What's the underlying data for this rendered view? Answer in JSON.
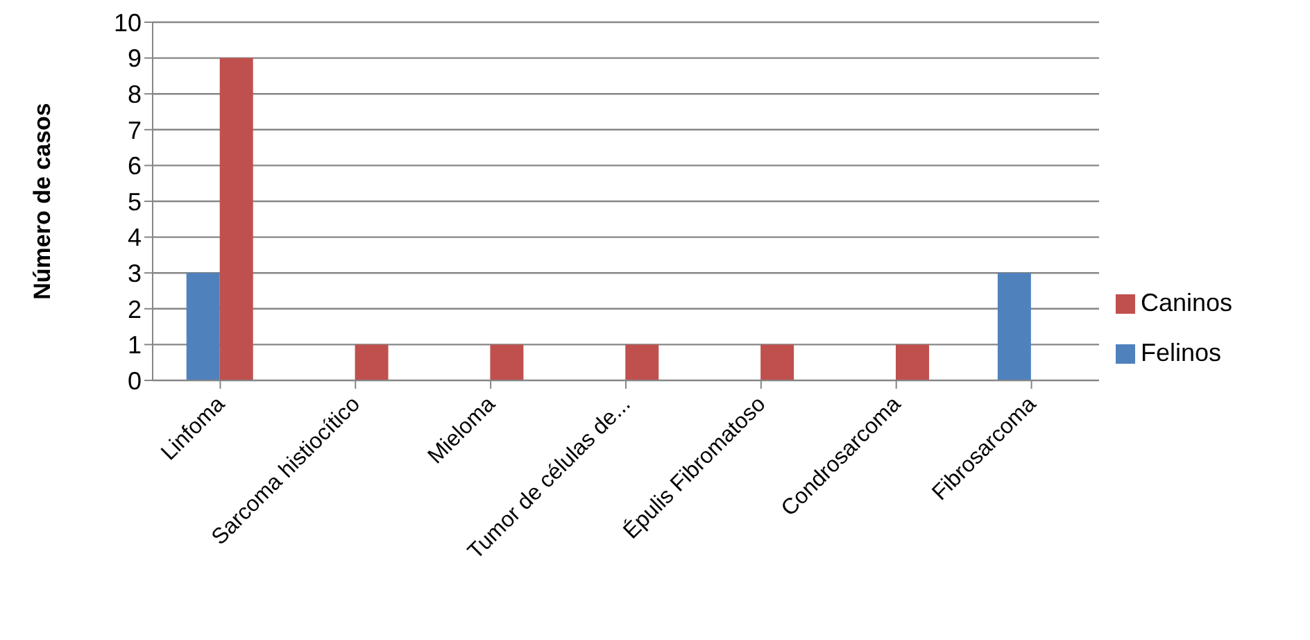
{
  "chart_data": {
    "type": "bar",
    "ylabel": "Número de casos",
    "categories": [
      "Linfoma",
      "Sarcoma histiocítico",
      "Mieloma",
      "Tumor de células de...",
      "Épulis Fibromatoso",
      "Condrosarcoma",
      "Fibrosarcoma"
    ],
    "series": [
      {
        "name": "Felinos",
        "color": "#4f81bd",
        "values": [
          3,
          0,
          0,
          0,
          0,
          0,
          3
        ]
      },
      {
        "name": "Caninos",
        "color": "#c0504d",
        "values": [
          9,
          1,
          1,
          1,
          1,
          1,
          0
        ]
      }
    ],
    "ylim": [
      0,
      10
    ],
    "yticks": [
      0,
      1,
      2,
      3,
      4,
      5,
      6,
      7,
      8,
      9,
      10
    ],
    "grid": "y",
    "legend": "right"
  }
}
